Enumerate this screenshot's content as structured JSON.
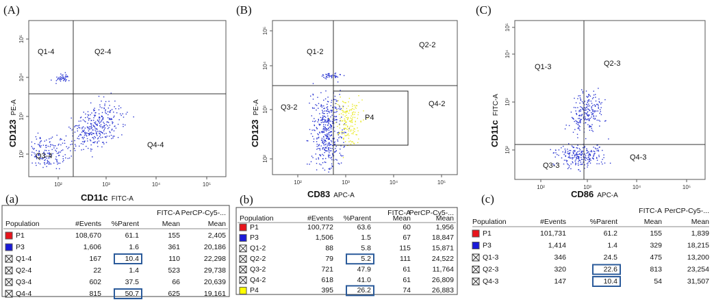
{
  "panels": [
    {
      "label": "(A)",
      "y_marker": "CD123",
      "y_channel": "PE-A",
      "x_marker": "CD11c",
      "x_channel": "FITC-A",
      "x_ticks": [
        "10²",
        "10³",
        "10⁴",
        "10⁵"
      ],
      "y_ticks": [
        "10²",
        "10³",
        "10⁴",
        "10⁵"
      ],
      "gates": [
        "Q1-4",
        "Q2-4",
        "Q3-4",
        "Q4-4"
      ]
    },
    {
      "label": "(B)",
      "y_marker": "CD123",
      "y_channel": "PE-A",
      "x_marker": "CD83",
      "x_channel": "APC-A",
      "x_ticks": [
        "10²",
        "10³",
        "10⁴",
        "10⁵"
      ],
      "y_ticks": [
        "10²",
        "10³",
        "10⁴",
        "10⁵"
      ],
      "gates": [
        "Q1-2",
        "Q2-2",
        "Q3-2",
        "Q4-2",
        "P4"
      ]
    },
    {
      "label": "(C)",
      "y_marker": "CD11c",
      "y_channel": "FITC-A",
      "x_marker": "CD86",
      "x_channel": "APC-A",
      "x_ticks": [
        "10²",
        "10³",
        "10⁴",
        "10⁵"
      ],
      "y_ticks": [
        "10²",
        "10³",
        "10⁴",
        "10⁵"
      ],
      "gates": [
        "Q1-3",
        "Q2-3",
        "Q3-3",
        "Q4-3"
      ]
    }
  ],
  "tables": [
    {
      "label": "(a)",
      "header_top": [
        "FITC-A",
        "PerCP-Cy5-..."
      ],
      "header": [
        "Population",
        "#Events",
        "%Parent",
        "Mean",
        "Mean"
      ],
      "rows": [
        {
          "swatch": "red",
          "cells": [
            "P1",
            "108,670",
            "61.1",
            "155",
            "2,405"
          ]
        },
        {
          "swatch": "blue",
          "cells": [
            "P3",
            "1,606",
            "1.6",
            "361",
            "20,186"
          ]
        },
        {
          "swatch": "cross",
          "cells": [
            "Q1-4",
            "167",
            "10.4",
            "110",
            "22,298"
          ]
        },
        {
          "swatch": "cross",
          "cells": [
            "Q2-4",
            "22",
            "1.4",
            "523",
            "29,738"
          ]
        },
        {
          "swatch": "cross",
          "cells": [
            "Q3-4",
            "602",
            "37.5",
            "66",
            "20,639"
          ]
        },
        {
          "swatch": "cross",
          "cells": [
            "Q4-4",
            "815",
            "50.7",
            "625",
            "19,161"
          ]
        }
      ],
      "highlighted": [
        [
          2,
          2
        ],
        [
          5,
          2
        ]
      ]
    },
    {
      "label": "(b)",
      "header_top": [
        "FITC-A",
        "PerCP-Cy5-..."
      ],
      "header": [
        "Population",
        "#Events",
        "%Parent",
        "Mean",
        "Mean"
      ],
      "rows": [
        {
          "swatch": "red",
          "cells": [
            "P1",
            "100,772",
            "63.6",
            "60",
            "1,956"
          ]
        },
        {
          "swatch": "blue",
          "cells": [
            "P3",
            "1,506",
            "1.5",
            "67",
            "18,847"
          ]
        },
        {
          "swatch": "cross",
          "cells": [
            "Q1-2",
            "88",
            "5.8",
            "115",
            "15,871"
          ]
        },
        {
          "swatch": "cross",
          "cells": [
            "Q2-2",
            "79",
            "5.2",
            "111",
            "24,522"
          ]
        },
        {
          "swatch": "cross",
          "cells": [
            "Q3-2",
            "721",
            "47.9",
            "61",
            "11,764"
          ]
        },
        {
          "swatch": "cross",
          "cells": [
            "Q4-2",
            "618",
            "41.0",
            "61",
            "26,809"
          ]
        },
        {
          "swatch": "yellow",
          "cells": [
            "P4",
            "395",
            "26.2",
            "74",
            "26,883"
          ]
        }
      ],
      "highlighted": [
        [
          3,
          2
        ],
        [
          6,
          2
        ]
      ]
    },
    {
      "label": "(c)",
      "header_top": [
        "FITC-A",
        "PerCP-Cy5-..."
      ],
      "header": [
        "Population",
        "#Events",
        "%Parent",
        "Mean",
        "Mean"
      ],
      "rows": [
        {
          "swatch": "red",
          "cells": [
            "P1",
            "101,731",
            "61.2",
            "155",
            "1,839"
          ]
        },
        {
          "swatch": "blue",
          "cells": [
            "P3",
            "1,414",
            "1.4",
            "329",
            "18,215"
          ]
        },
        {
          "swatch": "cross",
          "cells": [
            "Q1-3",
            "346",
            "24.5",
            "475",
            "13,200"
          ]
        },
        {
          "swatch": "cross",
          "cells": [
            "Q2-3",
            "320",
            "22.6",
            "813",
            "23,254"
          ]
        },
        {
          "swatch": "cross",
          "cells": [
            "Q4-3",
            "147",
            "10.4",
            "54",
            "31,507"
          ]
        }
      ],
      "highlighted": [
        [
          3,
          2
        ],
        [
          4,
          2
        ]
      ]
    }
  ]
}
